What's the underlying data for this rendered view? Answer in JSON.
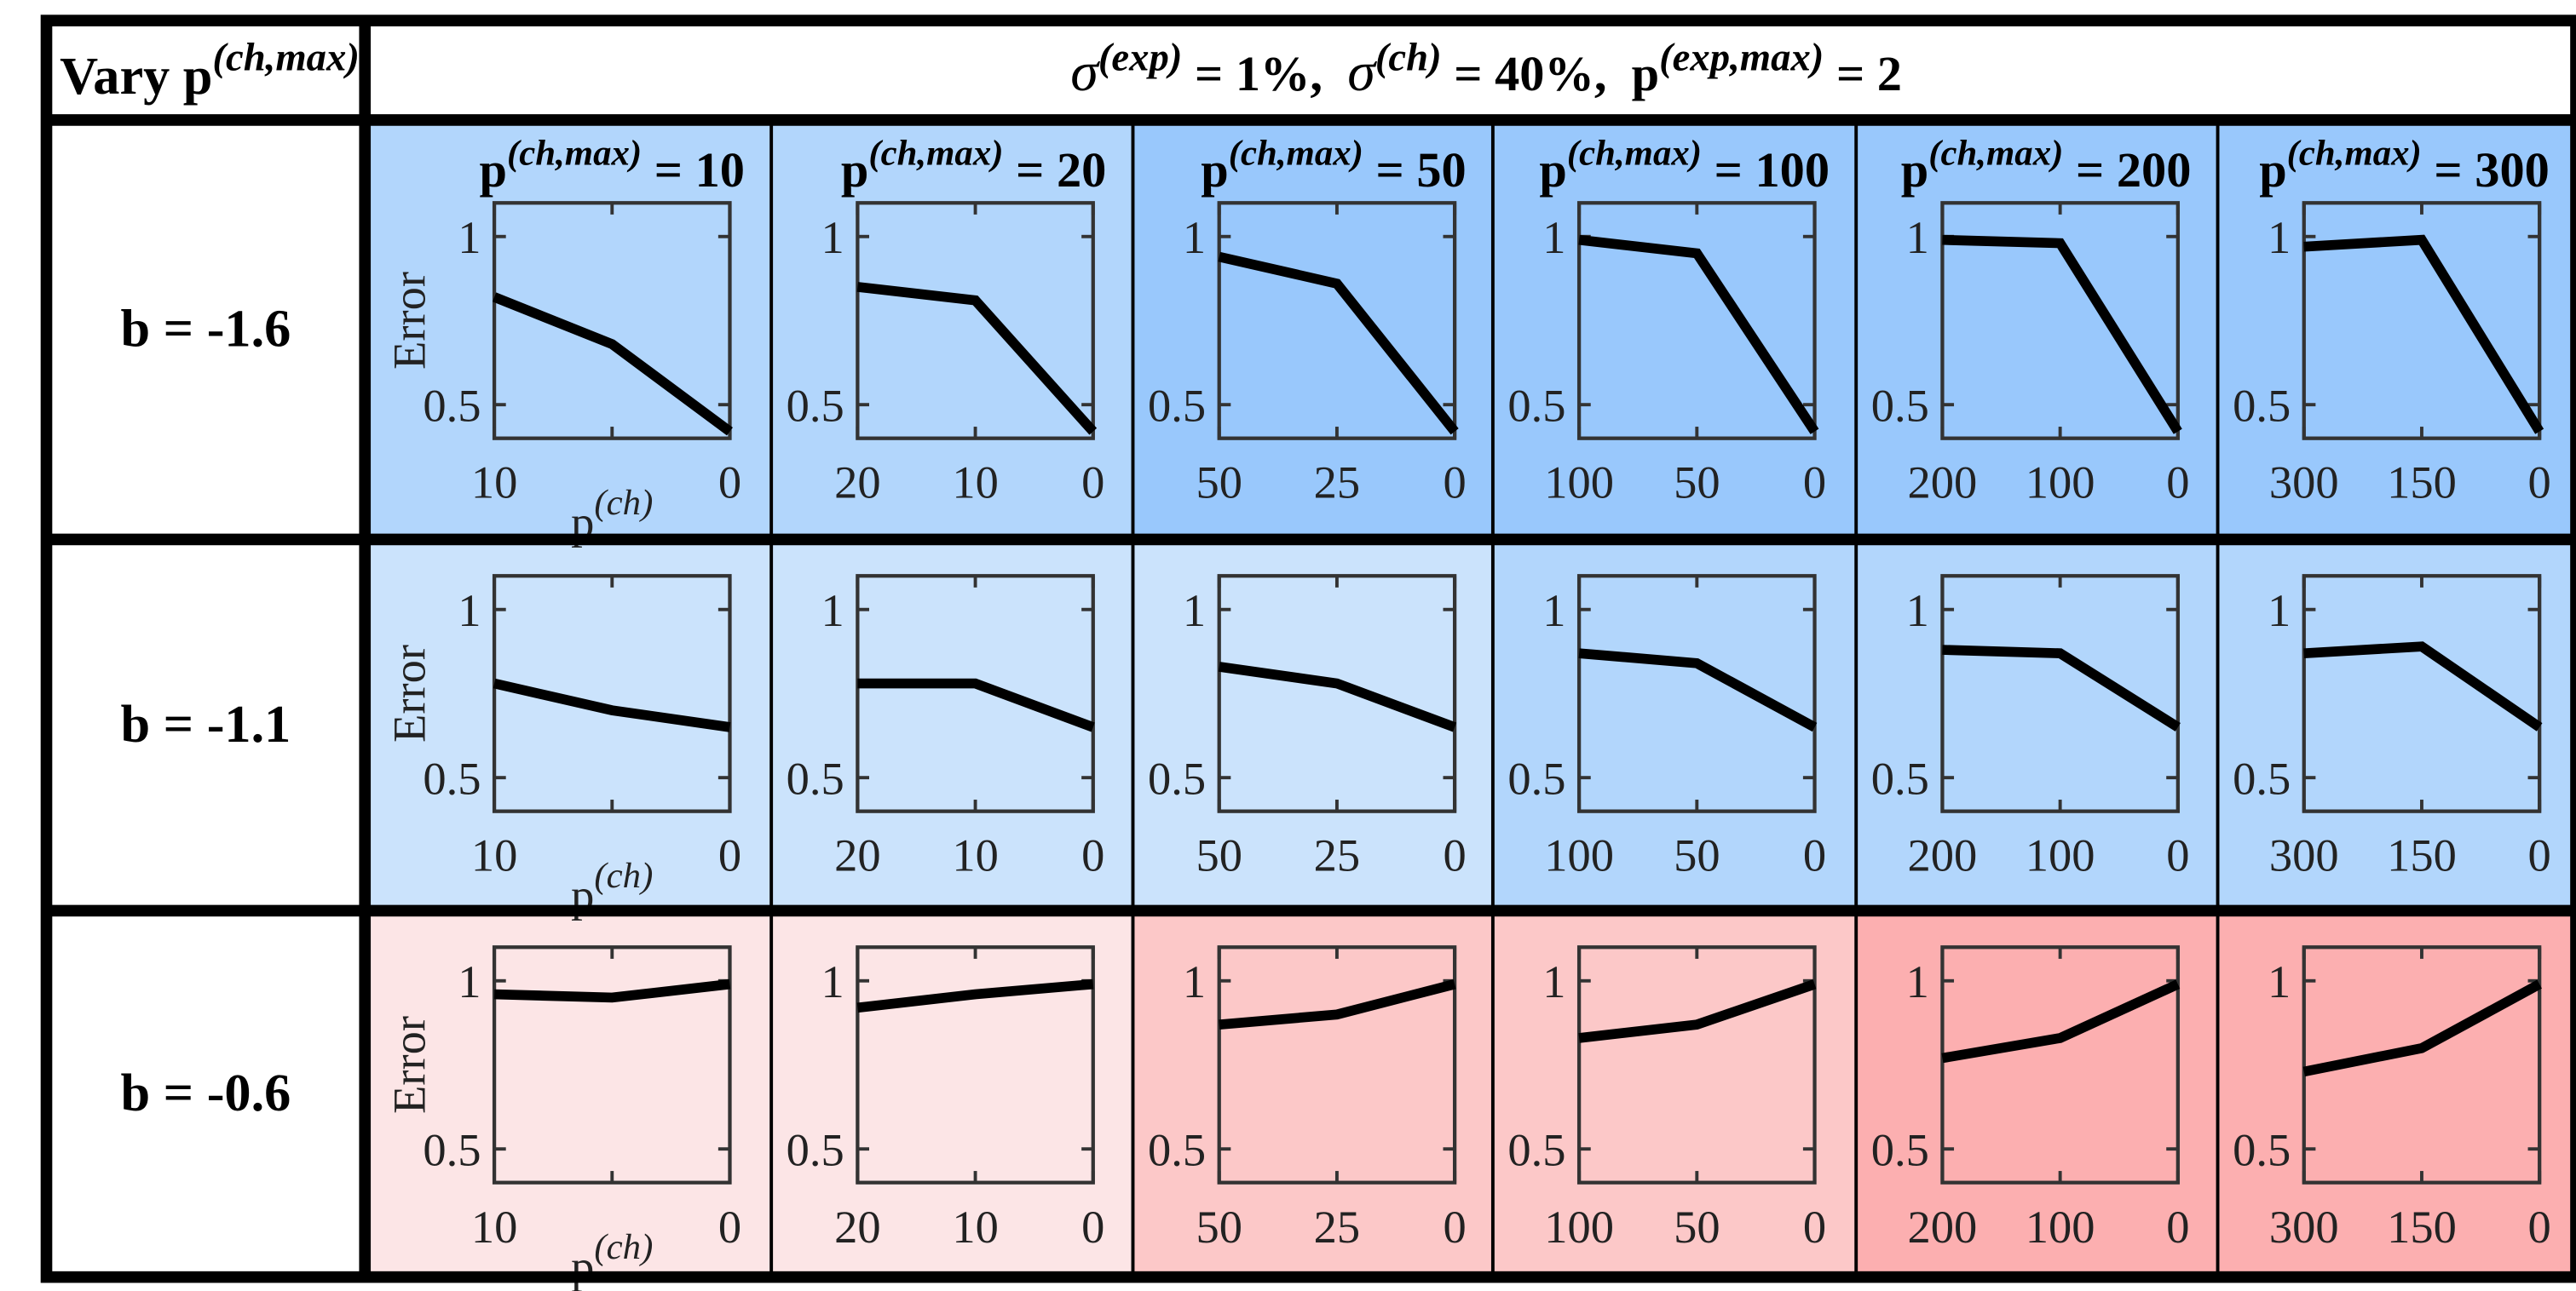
{
  "corner_label": {
    "main": "Vary p",
    "sup": "(ch,max)"
  },
  "header": {
    "sigma_exp_sup": "(exp)",
    "sigma_exp_val": " = 1%,",
    "sigma_ch_sup": "(ch)",
    "sigma_ch_val": " = 40%,",
    "pexp_sup": "(exp,max)",
    "pexp_val": " = 2"
  },
  "axis": {
    "ylabel": "Error",
    "xlabel_main": "p",
    "xlabel_sup": "(ch)",
    "yticks": [
      "0.5",
      "1"
    ]
  },
  "colors": {
    "blue_dark": "#99c8fc",
    "blue_mid": "#b2d6fc",
    "blue_light": "#cbe3fc",
    "red_light": "#fce5e6",
    "red_mid": "#fcc8c8",
    "red_dark": "#fcafb0"
  },
  "columns": [
    {
      "title_main": "p",
      "title_sup": "(ch,max)",
      "title_val": " = 10",
      "xticks": [
        "10",
        "",
        "0"
      ]
    },
    {
      "title_main": "p",
      "title_sup": "(ch,max)",
      "title_val": " = 20",
      "xticks": [
        "20",
        "10",
        "0"
      ]
    },
    {
      "title_main": "p",
      "title_sup": "(ch,max)",
      "title_val": " = 50",
      "xticks": [
        "50",
        "25",
        "0"
      ]
    },
    {
      "title_main": "p",
      "title_sup": "(ch,max)",
      "title_val": " = 100",
      "xticks": [
        "100",
        "50",
        "0"
      ]
    },
    {
      "title_main": "p",
      "title_sup": "(ch,max)",
      "title_val": " = 200",
      "xticks": [
        "200",
        "100",
        "0"
      ]
    },
    {
      "title_main": "p",
      "title_sup": "(ch,max)",
      "title_val": " = 300",
      "xticks": [
        "300",
        "150",
        "0"
      ]
    }
  ],
  "rows": [
    {
      "label": "b = -1.6"
    },
    {
      "label": "b = -1.1"
    },
    {
      "label": "b = -0.6"
    }
  ],
  "chart_data": {
    "type": "line",
    "title": "σ(exp) = 1%, σ(ch) = 40%, p(exp,max) = 2",
    "xlabel": "p(ch)",
    "ylabel": "Error",
    "ylim": [
      0.4,
      1.1
    ],
    "yticks": [
      0.5,
      1
    ],
    "x_direction": "reversed",
    "panels": [
      {
        "row": "b = -1.6",
        "col": "p(ch,max) = 10",
        "x": [
          10,
          5,
          0
        ],
        "y": [
          0.82,
          0.68,
          0.42
        ],
        "bg": "blue_mid"
      },
      {
        "row": "b = -1.6",
        "col": "p(ch,max) = 20",
        "x": [
          20,
          10,
          0
        ],
        "y": [
          0.85,
          0.81,
          0.42
        ],
        "bg": "blue_mid"
      },
      {
        "row": "b = -1.6",
        "col": "p(ch,max) = 50",
        "x": [
          50,
          25,
          0
        ],
        "y": [
          0.94,
          0.86,
          0.42
        ],
        "bg": "blue_dark"
      },
      {
        "row": "b = -1.6",
        "col": "p(ch,max) = 100",
        "x": [
          100,
          50,
          0
        ],
        "y": [
          0.99,
          0.95,
          0.42
        ],
        "bg": "blue_dark"
      },
      {
        "row": "b = -1.6",
        "col": "p(ch,max) = 200",
        "x": [
          200,
          100,
          0
        ],
        "y": [
          0.99,
          0.98,
          0.42
        ],
        "bg": "blue_dark"
      },
      {
        "row": "b = -1.6",
        "col": "p(ch,max) = 300",
        "x": [
          300,
          150,
          0
        ],
        "y": [
          0.97,
          0.99,
          0.42
        ],
        "bg": "blue_dark"
      },
      {
        "row": "b = -1.1",
        "col": "p(ch,max) = 10",
        "x": [
          10,
          5,
          0
        ],
        "y": [
          0.78,
          0.7,
          0.65
        ],
        "bg": "blue_light"
      },
      {
        "row": "b = -1.1",
        "col": "p(ch,max) = 20",
        "x": [
          20,
          10,
          0
        ],
        "y": [
          0.78,
          0.78,
          0.65
        ],
        "bg": "blue_light"
      },
      {
        "row": "b = -1.1",
        "col": "p(ch,max) = 50",
        "x": [
          50,
          25,
          0
        ],
        "y": [
          0.83,
          0.78,
          0.65
        ],
        "bg": "blue_light"
      },
      {
        "row": "b = -1.1",
        "col": "p(ch,max) = 100",
        "x": [
          100,
          50,
          0
        ],
        "y": [
          0.87,
          0.84,
          0.65
        ],
        "bg": "blue_mid"
      },
      {
        "row": "b = -1.1",
        "col": "p(ch,max) = 200",
        "x": [
          200,
          100,
          0
        ],
        "y": [
          0.88,
          0.87,
          0.65
        ],
        "bg": "blue_mid"
      },
      {
        "row": "b = -1.1",
        "col": "p(ch,max) = 300",
        "x": [
          300,
          150,
          0
        ],
        "y": [
          0.87,
          0.89,
          0.65
        ],
        "bg": "blue_mid"
      },
      {
        "row": "b = -0.6",
        "col": "p(ch,max) = 10",
        "x": [
          10,
          5,
          0
        ],
        "y": [
          0.96,
          0.95,
          0.99
        ],
        "bg": "red_light"
      },
      {
        "row": "b = -0.6",
        "col": "p(ch,max) = 20",
        "x": [
          20,
          10,
          0
        ],
        "y": [
          0.92,
          0.96,
          0.99
        ],
        "bg": "red_light"
      },
      {
        "row": "b = -0.6",
        "col": "p(ch,max) = 50",
        "x": [
          50,
          25,
          0
        ],
        "y": [
          0.87,
          0.9,
          0.99
        ],
        "bg": "red_mid"
      },
      {
        "row": "b = -0.6",
        "col": "p(ch,max) = 100",
        "x": [
          100,
          50,
          0
        ],
        "y": [
          0.83,
          0.87,
          0.99
        ],
        "bg": "red_mid"
      },
      {
        "row": "b = -0.6",
        "col": "p(ch,max) = 200",
        "x": [
          200,
          100,
          0
        ],
        "y": [
          0.77,
          0.83,
          0.99
        ],
        "bg": "red_dark"
      },
      {
        "row": "b = -0.6",
        "col": "p(ch,max) = 300",
        "x": [
          300,
          150,
          0
        ],
        "y": [
          0.73,
          0.8,
          0.99
        ],
        "bg": "red_dark"
      }
    ]
  }
}
